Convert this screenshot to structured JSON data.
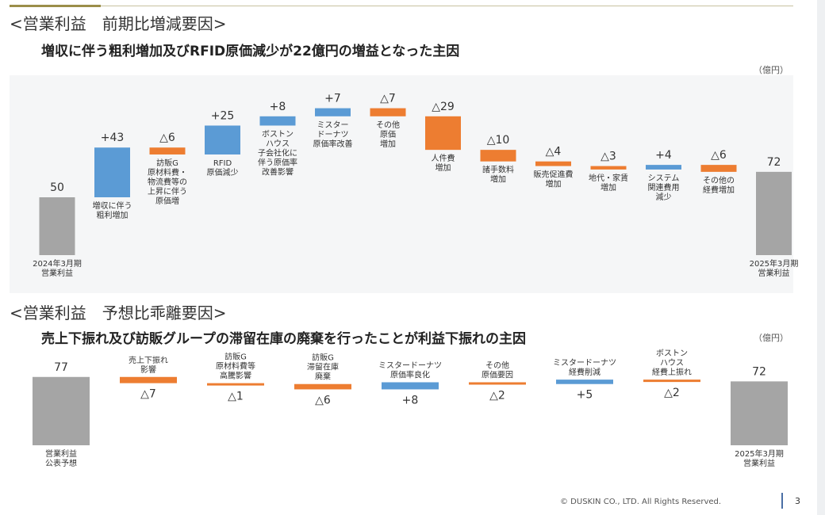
{
  "slide": {
    "footer": "© DUSKIN CO., LTD. All Rights Reserved.",
    "page_number": "3"
  },
  "colors": {
    "increase": "#5b9bd5",
    "decrease": "#ed7d31",
    "total": "#a5a5a5"
  },
  "sections": [
    {
      "title": "<営業利益　前期比増減要因>",
      "subtitle": "増収に伴う粗利増加及びRFID原価減少が22億円の増益となった主因",
      "unit": "（億円）"
    },
    {
      "title": "<営業利益　予想比乖離要因>",
      "subtitle": "売上下振れ及び訪販グループの滞留在庫の廃棄を行ったことが利益下振れの主因",
      "unit": "（億円）"
    }
  ],
  "chart_data": [
    {
      "type": "bar",
      "subtype": "waterfall",
      "ylim": [
        0,
        80
      ],
      "steps": [
        {
          "kind": "total",
          "value": 50,
          "value_label": "50",
          "label": "2024年3月期\n営業利益"
        },
        {
          "kind": "increase",
          "value": 43,
          "value_label": "+43",
          "label": "増収に伴う\n粗利増加"
        },
        {
          "kind": "decrease",
          "value": -6,
          "value_label": "△6",
          "label": "訪販G\n原材料費・\n物流費等の\n上昇に伴う\n原価増"
        },
        {
          "kind": "increase",
          "value": 25,
          "value_label": "+25",
          "label": "RFID\n原価減少"
        },
        {
          "kind": "increase",
          "value": 8,
          "value_label": "+8",
          "label": "ボストン\nハウス\n子会社化に\n伴う原価率\n改善影響"
        },
        {
          "kind": "increase",
          "value": 7,
          "value_label": "+7",
          "label": "ミスター\nドーナツ\n原価率改善"
        },
        {
          "kind": "decrease",
          "value": -7,
          "value_label": "△7",
          "label": "その他\n原価\n増加"
        },
        {
          "kind": "decrease",
          "value": -29,
          "value_label": "△29",
          "label": "人件費\n増加"
        },
        {
          "kind": "decrease",
          "value": -10,
          "value_label": "△10",
          "label": "諸手数料\n増加"
        },
        {
          "kind": "decrease",
          "value": -4,
          "value_label": "△4",
          "label": "販売促進費\n増加"
        },
        {
          "kind": "decrease",
          "value": -3,
          "value_label": "△3",
          "label": "地代・家賃\n増加"
        },
        {
          "kind": "increase",
          "value": 4,
          "value_label": "+4",
          "label": "システム\n関連費用\n減少"
        },
        {
          "kind": "decrease",
          "value": -6,
          "value_label": "△6",
          "label": "その他の\n経費増加"
        },
        {
          "kind": "total",
          "value": 72,
          "value_label": "72",
          "label": "2025年3月期\n営業利益"
        }
      ]
    },
    {
      "type": "bar",
      "subtype": "waterfall",
      "ylim": [
        0,
        80
      ],
      "steps": [
        {
          "kind": "total",
          "value": 77,
          "value_label": "77",
          "label": "営業利益\n公表予想"
        },
        {
          "kind": "decrease",
          "value": -7,
          "value_label": "△7",
          "label": "売上下振れ\n影響"
        },
        {
          "kind": "decrease",
          "value": -1,
          "value_label": "△1",
          "label": "訪販G\n原材料費等\n高騰影響"
        },
        {
          "kind": "decrease",
          "value": -6,
          "value_label": "△6",
          "label": "訪販G\n滞留在庫\n廃棄"
        },
        {
          "kind": "increase",
          "value": 8,
          "value_label": "+8",
          "label": "ミスタードーナツ\n原価率良化"
        },
        {
          "kind": "decrease",
          "value": -2,
          "value_label": "△2",
          "label": "その他\n原価要因"
        },
        {
          "kind": "increase",
          "value": 5,
          "value_label": "+5",
          "label": "ミスタードーナツ\n経費削減"
        },
        {
          "kind": "decrease",
          "value": -2,
          "value_label": "△2",
          "label": "ボストン\nハウス\n経費上振れ"
        },
        {
          "kind": "total",
          "value": 72,
          "value_label": "72",
          "label": "2025年3月期\n営業利益"
        }
      ]
    }
  ]
}
